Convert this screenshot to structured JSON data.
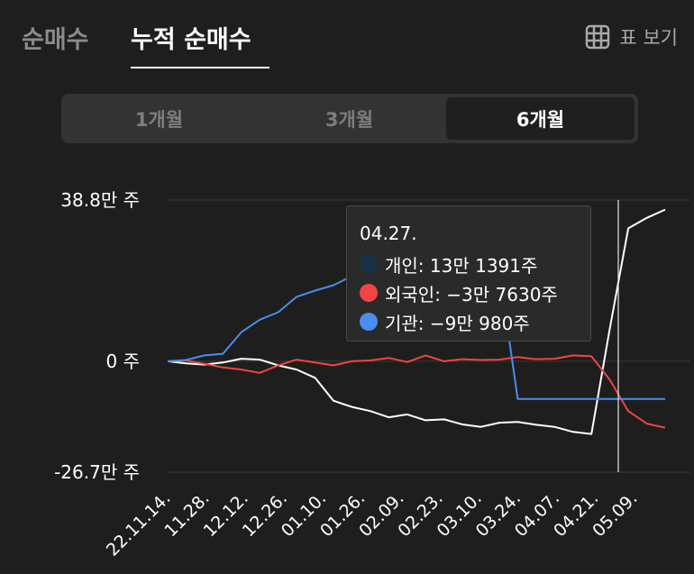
{
  "tabs": [
    {
      "label": "순매수",
      "active": false
    },
    {
      "label": "누적 순매수",
      "active": true
    }
  ],
  "table_view_label": "표 보기",
  "periods": [
    {
      "label": "1개월",
      "selected": false
    },
    {
      "label": "3개월",
      "selected": false
    },
    {
      "label": "6개월",
      "selected": true
    }
  ],
  "tooltip": {
    "date": "04.27.",
    "rows": [
      {
        "label": "개인: 13만 1391주"
      },
      {
        "label": "외국인: −3만 7630주"
      },
      {
        "label": "기관: −9만 980주"
      }
    ]
  },
  "chart_data": {
    "type": "line",
    "y_unit": "주",
    "ylim": [
      -267000,
      388000
    ],
    "y_ticks": [
      {
        "value": 388000,
        "label": "38.8만 주"
      },
      {
        "value": 0,
        "label": "0 주"
      },
      {
        "value": -267000,
        "label": "-26.7만 주"
      }
    ],
    "x_ticks": [
      "22.11.14.",
      "11.28.",
      "12.12.",
      "12.26.",
      "01.10.",
      "01.26.",
      "02.09.",
      "02.23.",
      "03.10.",
      "03.24.",
      "04.07.",
      "04.21.",
      "05.09."
    ],
    "cursor_date": "04.27.",
    "grid": true,
    "legend": "none",
    "series": [
      {
        "name": "개인",
        "color": "#ffffff",
        "values": [
          0,
          -5000,
          -8000,
          -3000,
          6000,
          4000,
          -10000,
          -20000,
          -40000,
          -95000,
          -110000,
          -120000,
          -135000,
          -128000,
          -142000,
          -140000,
          -152000,
          -158000,
          -148000,
          -146000,
          -153000,
          -158000,
          -170000,
          -175000,
          80000,
          320000,
          345000,
          365000
        ]
      },
      {
        "name": "외국인",
        "color": "#f24444",
        "values": [
          0,
          2000,
          -6000,
          -15000,
          -20000,
          -28000,
          -10000,
          4000,
          -3000,
          -10000,
          0,
          2000,
          8000,
          -2000,
          14000,
          0,
          5000,
          3000,
          4000,
          10000,
          5000,
          6000,
          14000,
          12000,
          -45000,
          -120000,
          -150000,
          -160000
        ]
      },
      {
        "name": "기관",
        "color": "#4a8cf0",
        "values": [
          0,
          3000,
          14000,
          18000,
          70000,
          100000,
          118000,
          155000,
          170000,
          183000,
          205000,
          190000,
          186000,
          198000,
          196000,
          200000,
          205000,
          214000,
          218000,
          -90980,
          -90980,
          -90980,
          -90980,
          -90980,
          -90980,
          -90980,
          -90980,
          -90980
        ]
      }
    ]
  },
  "colors": {
    "background": "#1e1e1e",
    "segment_bg": "#333333",
    "grid": "#3a3a3a"
  }
}
